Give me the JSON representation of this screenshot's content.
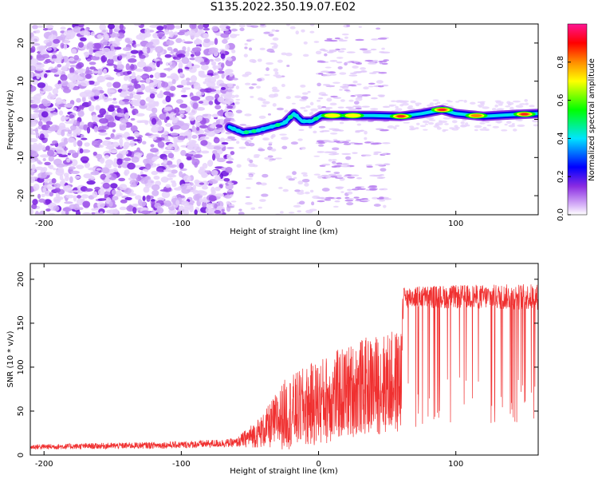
{
  "title": "S135.2022.350.19.07.E02",
  "chart_data": [
    {
      "type": "heatmap",
      "xlabel": "Height of straight line (km)",
      "ylabel": "Frequency (Hz)",
      "xlim": [
        -210,
        160
      ],
      "ylim": [
        -25,
        25
      ],
      "xticks": [
        -200,
        -100,
        0,
        100
      ],
      "yticks": [
        -20,
        -10,
        0,
        10,
        20
      ],
      "colorbar": {
        "label": "Normalized spectral amplitude",
        "range": [
          0.0,
          1.0
        ],
        "ticks": [
          "0.0",
          "0.2",
          "0.4",
          "0.6",
          "0.8"
        ],
        "colors": [
          "#ffffff",
          "#d8b4f8",
          "#8a2be2",
          "#0000ff",
          "#00e5ff",
          "#00ff00",
          "#ffff00",
          "#ff8c00",
          "#ff0000",
          "#ff1493"
        ]
      },
      "ridge": {
        "description_free": true,
        "points": [
          [
            -65,
            -2
          ],
          [
            -55,
            -3.5
          ],
          [
            -45,
            -3
          ],
          [
            -35,
            -2
          ],
          [
            -25,
            -1
          ],
          [
            -18,
            1.5
          ],
          [
            -12,
            -0.5
          ],
          [
            -5,
            -0.5
          ],
          [
            2,
            1
          ],
          [
            20,
            1
          ],
          [
            40,
            1
          ],
          [
            60,
            0.8
          ],
          [
            75,
            1.5
          ],
          [
            90,
            2.5
          ],
          [
            100,
            1.5
          ],
          [
            120,
            0.8
          ],
          [
            140,
            1.2
          ],
          [
            160,
            1.5
          ]
        ],
        "peak_amplitude": [
          [
            10,
            0.6
          ],
          [
            25,
            0.55
          ],
          [
            60,
            0.9
          ],
          [
            90,
            0.95
          ],
          [
            115,
            0.7
          ],
          [
            150,
            0.85
          ]
        ]
      }
    },
    {
      "type": "line",
      "xlabel": "Height of straight line (km)",
      "ylabel": "SNR (10 * v/v)",
      "xlim": [
        -210,
        160
      ],
      "ylim": [
        0,
        218
      ],
      "xticks": [
        -200,
        -100,
        0,
        100
      ],
      "yticks": [
        0,
        50,
        100,
        150,
        200
      ],
      "color": "#f03030",
      "envelope": [
        {
          "x": -210,
          "base": 8,
          "spread": 6
        },
        {
          "x": -100,
          "base": 10,
          "spread": 8
        },
        {
          "x": -60,
          "base": 12,
          "spread": 10
        },
        {
          "x": -40,
          "base": 20,
          "spread": 40
        },
        {
          "x": -25,
          "base": 30,
          "spread": 80
        },
        {
          "x": 0,
          "base": 40,
          "spread": 100
        },
        {
          "x": 30,
          "base": 55,
          "spread": 110
        },
        {
          "x": 60,
          "base": 60,
          "spread": 120
        },
        {
          "x": 62,
          "base": 180,
          "spread": 25
        },
        {
          "x": 160,
          "base": 180,
          "spread": 30
        }
      ]
    }
  ]
}
